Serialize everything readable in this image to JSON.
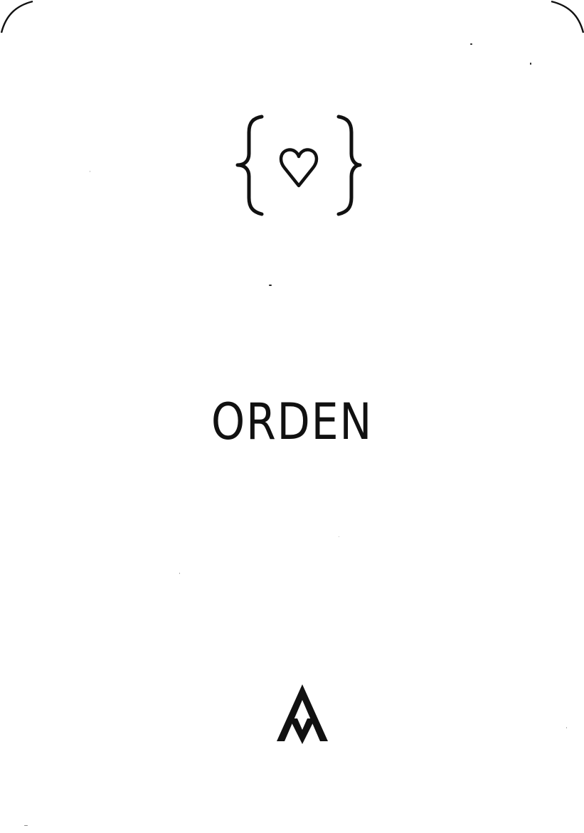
{
  "card": {
    "title": "ORDEN"
  },
  "icons": {
    "emblem": "heart-in-braces-icon",
    "logo": "stacked-a-monogram-logo"
  },
  "colors": {
    "background": "#ffffff",
    "ink": "#111111"
  }
}
